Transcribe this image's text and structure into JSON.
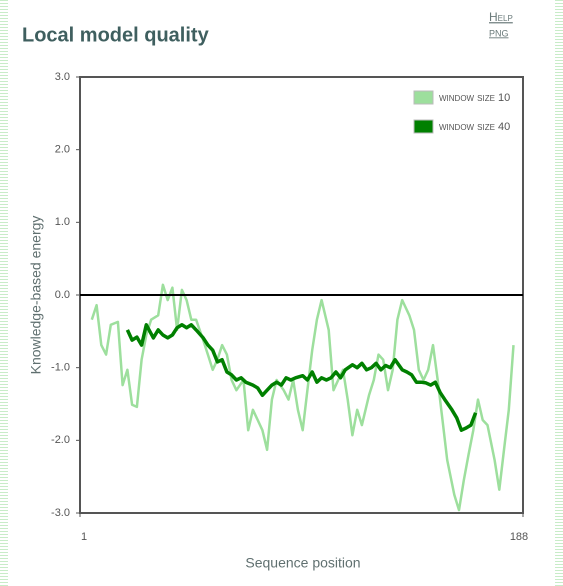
{
  "header": {
    "help": "Help",
    "png": "PNG"
  },
  "chart_data": {
    "type": "line",
    "title": "Local model quality",
    "xlabel": "Sequence position",
    "ylabel": "Knowledge-based energy",
    "xlim": [
      1,
      188
    ],
    "xticks": [
      1,
      188
    ],
    "ylim": [
      -3,
      3
    ],
    "yticks": [
      {
        "value": -3,
        "label": "-3.0"
      },
      {
        "value": -2,
        "label": "-2.0"
      },
      {
        "value": -1,
        "label": "-1.0"
      },
      {
        "value": 0,
        "label": "0.0"
      },
      {
        "value": 1,
        "label": "1.0"
      },
      {
        "value": 2,
        "label": "2.0"
      },
      {
        "value": 3,
        "label": "3.0"
      }
    ],
    "zero_line": true,
    "legend": "upper right",
    "series": [
      {
        "name": "window size 10",
        "color": "#9ddf9d",
        "x": [
          6,
          8,
          10,
          12,
          14,
          17,
          19,
          21,
          23,
          25,
          27,
          29,
          31,
          34,
          36,
          38,
          40,
          42,
          44,
          46,
          48,
          50,
          53,
          55,
          57,
          59,
          61,
          63,
          65,
          67,
          70,
          72,
          74,
          76,
          78,
          80,
          82,
          84,
          87,
          89,
          91,
          93,
          95,
          97,
          99,
          101,
          103,
          106,
          108,
          110,
          112,
          114,
          116,
          118,
          120,
          123,
          125,
          127,
          129,
          131,
          133,
          135,
          137,
          140,
          142,
          144,
          146,
          148,
          150,
          152,
          154,
          156,
          159,
          161,
          163,
          165,
          167,
          169,
          171,
          173,
          176,
          178,
          180,
          182,
          184
        ],
        "values": [
          -0.34,
          -0.14,
          -0.69,
          -0.82,
          -0.41,
          -0.37,
          -1.24,
          -1.03,
          -1.51,
          -1.54,
          -0.89,
          -0.55,
          -0.34,
          -0.28,
          0.14,
          -0.07,
          0.1,
          -0.48,
          0.07,
          -0.07,
          -0.34,
          -0.34,
          -0.62,
          -0.82,
          -1.03,
          -0.89,
          -0.69,
          -0.82,
          -1.17,
          -1.31,
          -1.17,
          -1.86,
          -1.58,
          -1.72,
          -1.86,
          -2.13,
          -1.44,
          -1.17,
          -1.31,
          -1.44,
          -1.17,
          -1.58,
          -1.86,
          -1.31,
          -0.76,
          -0.34,
          -0.07,
          -0.48,
          -1.31,
          -1.17,
          -1.03,
          -1.44,
          -1.93,
          -1.58,
          -1.79,
          -1.38,
          -1.17,
          -0.82,
          -0.89,
          -1.31,
          -1.03,
          -0.34,
          -0.07,
          -0.28,
          -0.48,
          -1.03,
          -1.17,
          -1.03,
          -0.69,
          -1.17,
          -1.72,
          -2.27,
          -2.75,
          -2.96,
          -2.55,
          -2.2,
          -1.86,
          -1.44,
          -1.72,
          -1.79,
          -2.27,
          -2.68,
          -2.13,
          -1.58,
          -0.69
        ]
      },
      {
        "name": "window size 40",
        "color": "#008000",
        "x": [
          21,
          23,
          25,
          27,
          29,
          32,
          34,
          36,
          38,
          40,
          42,
          44,
          46,
          48,
          50,
          53,
          55,
          57,
          59,
          61,
          63,
          65,
          67,
          69,
          71,
          74,
          76,
          78,
          80,
          82,
          84,
          86,
          88,
          90,
          92,
          95,
          97,
          99,
          101,
          103,
          105,
          107,
          109,
          111,
          113,
          116,
          118,
          120,
          122,
          124,
          126,
          128,
          130,
          132,
          134,
          137,
          139,
          141,
          143,
          145,
          147,
          149,
          151,
          153,
          155,
          158,
          160,
          162,
          164,
          166,
          168
        ],
        "values": [
          -0.48,
          -0.62,
          -0.58,
          -0.69,
          -0.41,
          -0.59,
          -0.48,
          -0.55,
          -0.59,
          -0.55,
          -0.45,
          -0.41,
          -0.45,
          -0.41,
          -0.48,
          -0.59,
          -0.69,
          -0.76,
          -0.92,
          -0.89,
          -1.06,
          -1.1,
          -1.17,
          -1.14,
          -1.2,
          -1.24,
          -1.28,
          -1.38,
          -1.31,
          -1.24,
          -1.2,
          -1.24,
          -1.14,
          -1.17,
          -1.14,
          -1.11,
          -1.17,
          -1.06,
          -1.2,
          -1.14,
          -1.17,
          -1.14,
          -1.06,
          -1.14,
          -1.03,
          -0.96,
          -1.0,
          -0.94,
          -1.03,
          -1.0,
          -0.94,
          -1.03,
          -0.97,
          -1.0,
          -0.89,
          -1.03,
          -1.06,
          -1.1,
          -1.2,
          -1.2,
          -1.21,
          -1.24,
          -1.2,
          -1.34,
          -1.44,
          -1.58,
          -1.69,
          -1.86,
          -1.83,
          -1.79,
          -1.62
        ]
      }
    ]
  }
}
